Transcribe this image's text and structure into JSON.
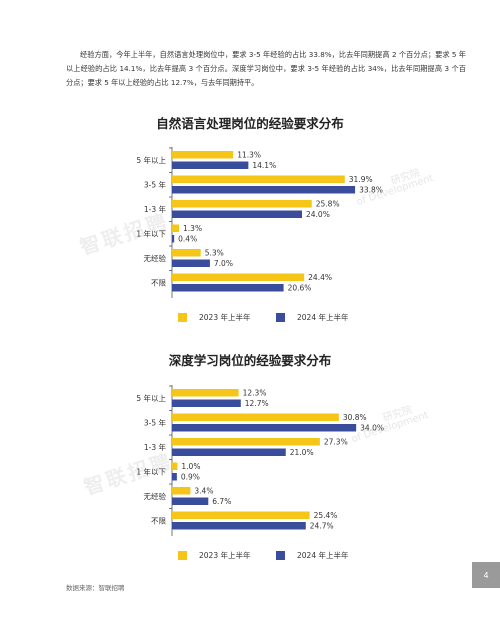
{
  "intro_text": "经验方面，今年上半年，自然语言处理岗位中，要求 3-5 年经验的占比 33.8%，比去年同期提高 2 个百分点；要求 5 年以上经验的占比 14.1%，比去年提高 3 个百分点。深度学习岗位中，要求 3-5 年经验的占比 34%，比去年同期提高 3 个百分点；要求 5 年以上经验的占比 12.7%，与去年同期持平。",
  "watermark": {
    "brand": "智联招聘",
    "institute": "研究院",
    "institute_en": "of Development"
  },
  "colors": {
    "s2023": "#f5c518",
    "s2024": "#3a4d9c"
  },
  "chart_data": [
    {
      "type": "bar",
      "orientation": "horizontal",
      "title": "自然语言处理岗位的经验要求分布",
      "categories": [
        "5 年以上",
        "3-5 年",
        "1-3 年",
        "1 年以下",
        "无经验",
        "不限"
      ],
      "xlim": [
        0,
        36
      ],
      "series": [
        {
          "name": "2023 年上半年",
          "values": [
            11.3,
            31.9,
            25.8,
            1.3,
            5.3,
            24.4
          ],
          "labels": [
            "11.3%",
            "31.9%",
            "25.8%",
            "1.3%",
            "5.3%",
            "24.4%"
          ]
        },
        {
          "name": "2024 年上半年",
          "values": [
            14.1,
            33.8,
            24.0,
            0.4,
            7.0,
            20.6
          ],
          "labels": [
            "14.1%",
            "33.8%",
            "24.0%",
            "0.4%",
            "7.0%",
            "20.6%"
          ]
        }
      ],
      "legend": "bottom"
    },
    {
      "type": "bar",
      "orientation": "horizontal",
      "title": "深度学习岗位的经验要求分布",
      "categories": [
        "5 年以上",
        "3-5 年",
        "1-3 年",
        "1 年以下",
        "无经验",
        "不限"
      ],
      "xlim": [
        0,
        36
      ],
      "series": [
        {
          "name": "2023 年上半年",
          "values": [
            12.3,
            30.8,
            27.3,
            1.0,
            3.4,
            25.4
          ],
          "labels": [
            "12.3%",
            "30.8%",
            "27.3%",
            "1.0%",
            "3.4%",
            "25.4%"
          ]
        },
        {
          "name": "2024 年上半年",
          "values": [
            12.7,
            34.0,
            21.0,
            0.9,
            6.7,
            24.7
          ],
          "labels": [
            "12.7%",
            "34.0%",
            "21.0%",
            "0.9%",
            "6.7%",
            "24.7%"
          ]
        }
      ],
      "legend": "bottom"
    }
  ],
  "footer": {
    "source": "数据来源：智联招聘",
    "page_number": "4"
  }
}
